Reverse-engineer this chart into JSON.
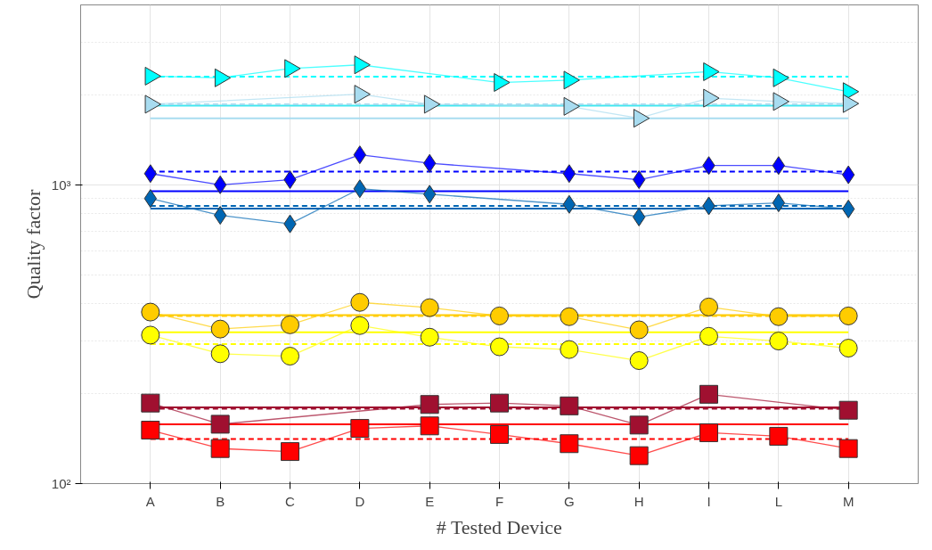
{
  "chart_data": {
    "type": "line",
    "xlabel": "# Tested Device",
    "ylabel": "Quality factor",
    "categories": [
      "A",
      "B",
      "C",
      "D",
      "E",
      "F",
      "G",
      "H",
      "I",
      "L",
      "M"
    ],
    "log": "y",
    "ylim": [
      100,
      4000
    ],
    "yticks": [
      {
        "value": 100,
        "label": "10²"
      },
      {
        "value": 1000,
        "label": "10³"
      }
    ],
    "grid": true,
    "series": [
      {
        "color": "#00ffff",
        "marker": "triangle",
        "values": [
          2310,
          2280,
          2450,
          2520,
          null,
          2200,
          2240,
          null,
          2390,
          2280,
          2050
        ]
      },
      {
        "color": "#a8dcf0",
        "marker": "triangle",
        "values": [
          1860,
          null,
          null,
          2010,
          1860,
          null,
          1830,
          1670,
          1950,
          1900,
          1870
        ]
      },
      {
        "color": "#0000ff",
        "marker": "diamond",
        "values": [
          1090,
          1000,
          1040,
          1260,
          1180,
          null,
          1090,
          1040,
          1160,
          1160,
          1080
        ]
      },
      {
        "color": "#0066b3",
        "marker": "diamond",
        "values": [
          900,
          790,
          740,
          970,
          930,
          null,
          860,
          780,
          850,
          870,
          830
        ]
      },
      {
        "color": "#ffcc00",
        "marker": "circle",
        "values": [
          375,
          329,
          340,
          404,
          388,
          364,
          362,
          327,
          390,
          362,
          364
        ]
      },
      {
        "color": "#ffff00",
        "marker": "circle",
        "values": [
          314,
          272,
          267,
          338,
          309,
          287,
          281,
          258,
          311,
          300,
          284
        ]
      },
      {
        "color": "#a01030",
        "marker": "square",
        "values": [
          186,
          158,
          null,
          null,
          184,
          186,
          182,
          157,
          199,
          null,
          176
        ]
      },
      {
        "color": "#ff0000",
        "marker": "square",
        "values": [
          151,
          131,
          128,
          153,
          156,
          146,
          136,
          124,
          148,
          144,
          131
        ]
      }
    ],
    "ref_lines": [
      {
        "axis": "y",
        "value": 2300,
        "color": "#00ffff",
        "line_style": "dashed"
      },
      {
        "axis": "y",
        "value": 1840,
        "color": "#40e8f0",
        "line_style": "solid"
      },
      {
        "axis": "y",
        "value": 1860,
        "color": "#a8dcf0",
        "line_style": "dashed"
      },
      {
        "axis": "y",
        "value": 1670,
        "color": "#a8dcf0",
        "line_style": "solid"
      },
      {
        "axis": "y",
        "value": 1107,
        "color": "#0000ff",
        "line_style": "dashed"
      },
      {
        "axis": "y",
        "value": 952,
        "color": "#0000ff",
        "line_style": "solid"
      },
      {
        "axis": "y",
        "value": 850,
        "color": "#0066b3",
        "line_style": "dashed"
      },
      {
        "axis": "y",
        "value": 833,
        "color": "#0066b3",
        "line_style": "solid"
      },
      {
        "axis": "y",
        "value": 366,
        "color": "#ffcc00",
        "line_style": "solid"
      },
      {
        "axis": "y",
        "value": 364,
        "color": "#ffcc00",
        "line_style": "dashed"
      },
      {
        "axis": "y",
        "value": 321,
        "color": "#ffff00",
        "line_style": "solid"
      },
      {
        "axis": "y",
        "value": 293,
        "color": "#ffff00",
        "line_style": "dashed"
      },
      {
        "axis": "y",
        "value": 180,
        "color": "#a01030",
        "line_style": "solid"
      },
      {
        "axis": "y",
        "value": 178,
        "color": "#a01030",
        "line_style": "dashed"
      },
      {
        "axis": "y",
        "value": 158,
        "color": "#ff0000",
        "line_style": "solid"
      },
      {
        "axis": "y",
        "value": 141,
        "color": "#ff0000",
        "line_style": "dashed"
      }
    ]
  }
}
